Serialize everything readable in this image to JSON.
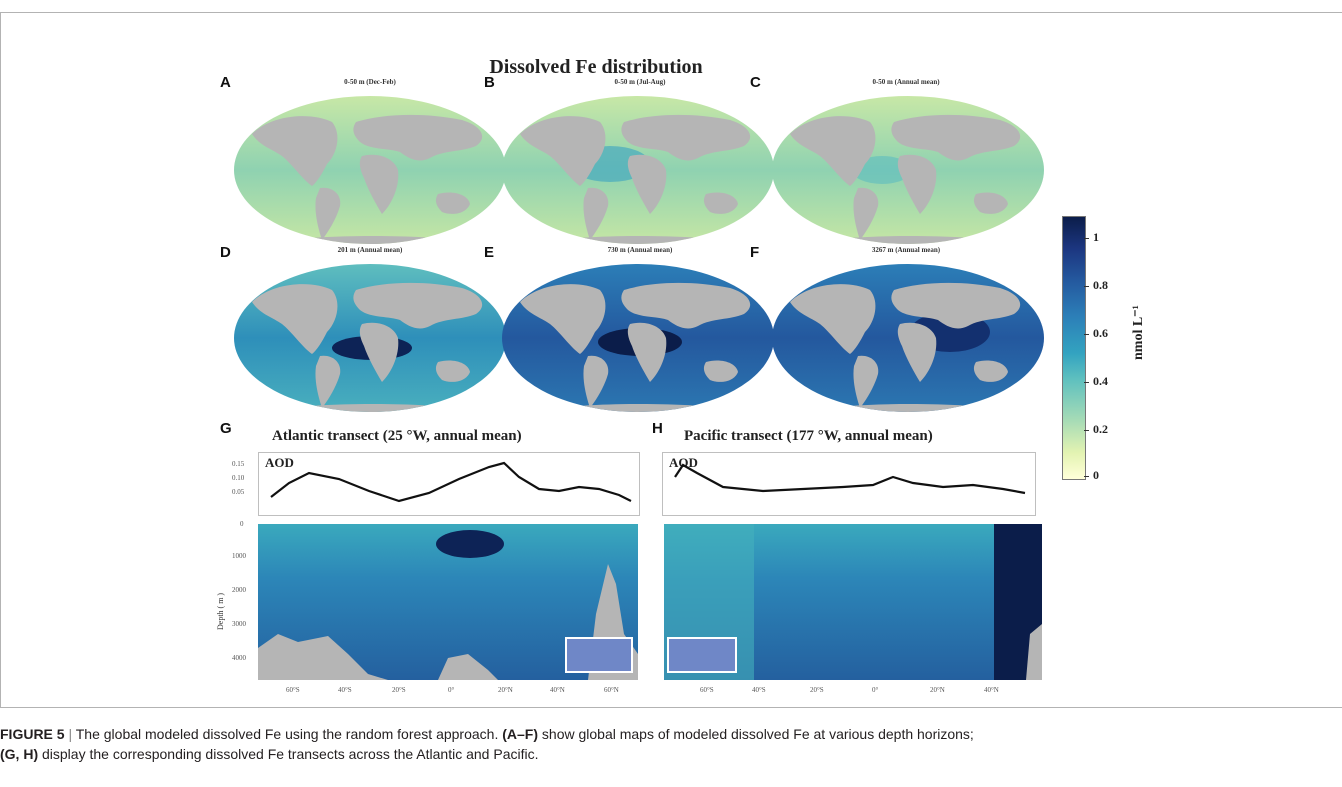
{
  "figure": {
    "title": "Dissolved Fe distribution",
    "panels": [
      {
        "label": "A",
        "subtitle": "0-50 m (Dec-Feb)"
      },
      {
        "label": "B",
        "subtitle": "0-50 m (Jul-Aug)"
      },
      {
        "label": "C",
        "subtitle": "0-50 m (Annual mean)"
      },
      {
        "label": "D",
        "subtitle": "201 m (Annual mean)"
      },
      {
        "label": "E",
        "subtitle": "730 m (Annual mean)"
      },
      {
        "label": "F",
        "subtitle": "3267 m (Annual mean)"
      }
    ],
    "transects": [
      {
        "label": "G",
        "title": "Atlantic transect (25 °W, annual mean)",
        "aod_label": "AOD",
        "aod_ticks": [
          "0.15",
          "0.10",
          "0.05"
        ],
        "depth_ticks": [
          "0",
          "1000",
          "2000",
          "3000",
          "4000"
        ],
        "ylabel": "Depth ( m )",
        "lat_ticks": [
          "60°S",
          "40°S",
          "20°S",
          "0°",
          "20°N",
          "40°N",
          "60°N"
        ]
      },
      {
        "label": "H",
        "title": "Pacific transect (177 °W, annual mean)",
        "aod_label": "AOD",
        "lat_ticks": [
          "60°S",
          "40°S",
          "20°S",
          "0°",
          "20°N",
          "40°N"
        ]
      }
    ],
    "colorbar": {
      "unit": "nmol L⁻¹",
      "ticks": [
        "1",
        "0.8",
        "0.6",
        "0.4",
        "0.2",
        "0"
      ]
    }
  },
  "caption": {
    "figure_label": "FIGURE 5",
    "separator": "|",
    "text1": "The global modeled dissolved Fe using the random forest approach.",
    "ref1": "(A–F)",
    "text2": "show global maps of modeled dissolved Fe at various depth horizons;",
    "ref2": "(G, H)",
    "text3": "display the corresponding dissolved Fe transects across the Atlantic and Pacific."
  },
  "colors": {
    "land": "#b5b5b5",
    "low": "#ffffd9",
    "high": "#0b1d4a"
  }
}
